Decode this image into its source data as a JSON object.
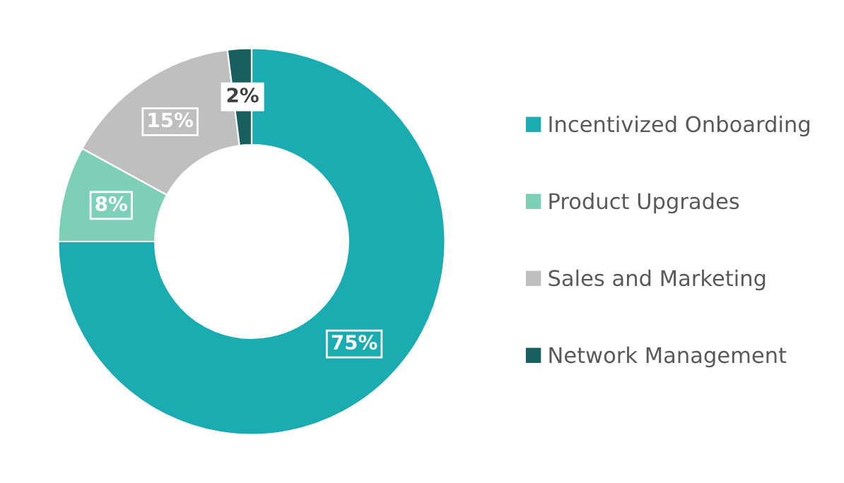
{
  "chart_data": {
    "type": "donut",
    "categories": [
      "Incentivized Onboarding",
      "Product Upgrades",
      "Sales and Marketing",
      "Network Management"
    ],
    "values": [
      75,
      8,
      15,
      2
    ],
    "colors": [
      "#1aacb0",
      "#7dcfb6",
      "#bfbfbf",
      "#1a5f5f"
    ],
    "value_labels": [
      "75%",
      "8%",
      "15%",
      "2%"
    ],
    "legend": "right"
  }
}
